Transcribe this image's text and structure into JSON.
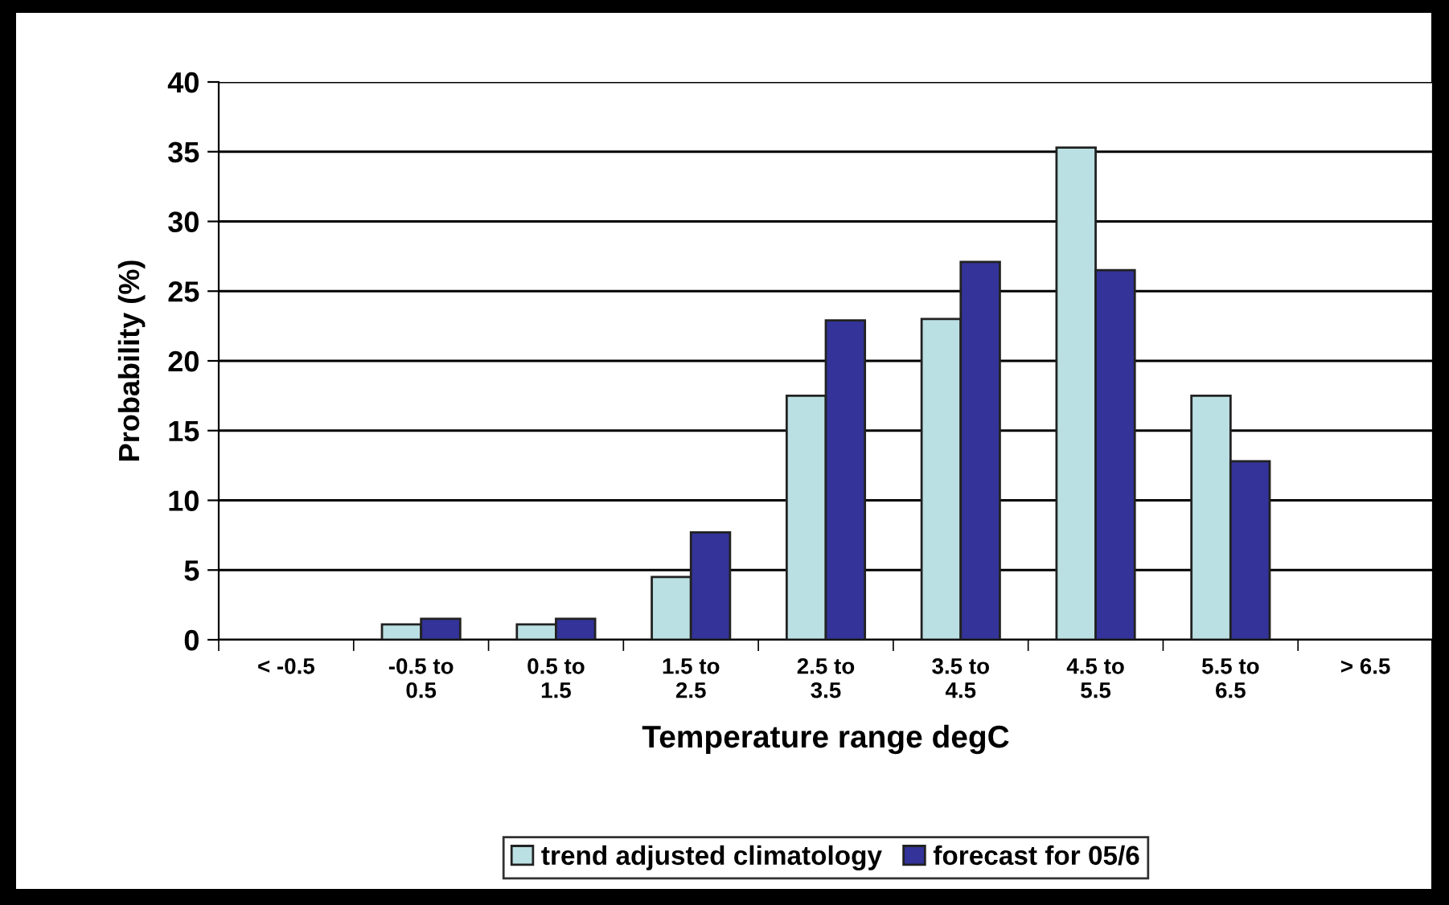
{
  "chart_data": {
    "type": "bar",
    "xlabel": "Temperature range degC",
    "ylabel": "Probability (%)",
    "categories": [
      "< -0.5",
      "-0.5 to\n0.5",
      "0.5 to\n1.5",
      "1.5 to\n2.5",
      "2.5 to\n3.5",
      "3.5 to\n4.5",
      "4.5 to\n5.5",
      "5.5 to\n6.5",
      "> 6.5"
    ],
    "series": [
      {
        "name": "trend adjusted climatology",
        "color": "#bbe0e3",
        "values": [
          0,
          1.1,
          1.1,
          4.5,
          17.5,
          23.0,
          35.3,
          17.5,
          0
        ]
      },
      {
        "name": "forecast for 05/6",
        "color": "#333399",
        "values": [
          0,
          1.5,
          1.5,
          7.7,
          22.9,
          27.1,
          26.5,
          12.8,
          0
        ]
      }
    ],
    "ylim": [
      0,
      40
    ],
    "yticks": [
      0,
      5,
      10,
      15,
      20,
      25,
      30,
      35,
      40
    ],
    "grid": "y",
    "legend": "bottom"
  }
}
